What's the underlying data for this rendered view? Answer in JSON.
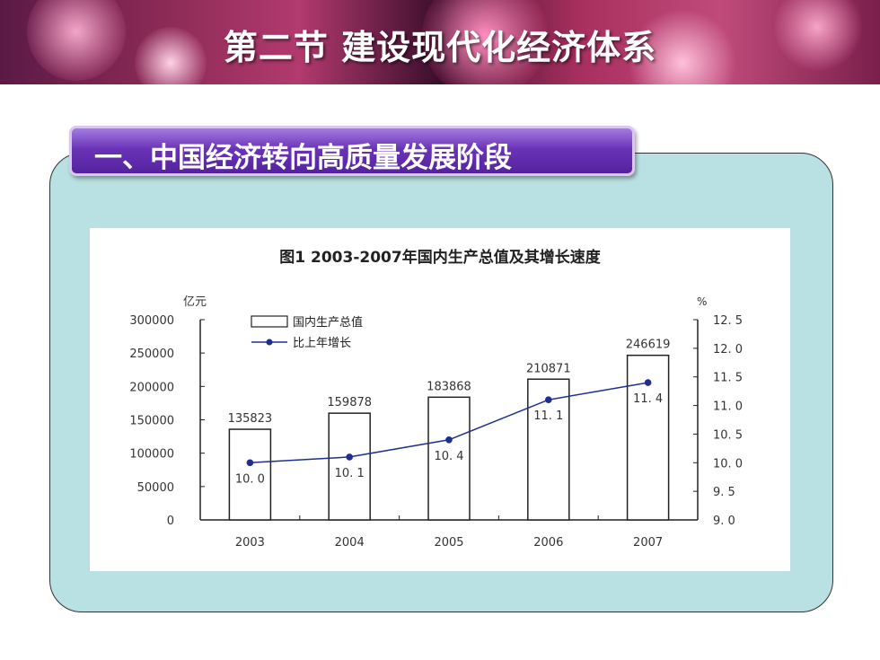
{
  "slide": {
    "title": "第二节  建设现代化经济体系",
    "section_title": "一、中国经济转向高质量发展阶段"
  },
  "colors": {
    "panel_bg": "#b9e0e2",
    "tab_purple": "#6b34b8",
    "line_color": "#1f2f8f"
  },
  "chart_data": {
    "type": "bar",
    "title": "图1   2003-2007年国内生产总值及其增长速度",
    "categories": [
      "2003",
      "2004",
      "2005",
      "2006",
      "2007"
    ],
    "left_axis": {
      "unit": "亿元",
      "ylim": [
        0,
        300000
      ],
      "ticks": [
        "300000",
        "250000",
        "200000",
        "150000",
        "100000",
        "50000",
        "0"
      ]
    },
    "right_axis": {
      "unit": "%",
      "ylim": [
        9.0,
        12.5
      ],
      "ticks": [
        "12. 5",
        "12. 0",
        "11. 5",
        "11. 0",
        "10. 5",
        "10. 0",
        "9. 5",
        "9. 0"
      ]
    },
    "series": [
      {
        "name": "国内生产总值",
        "kind": "bar",
        "axis": "left",
        "values": [
          135823,
          159878,
          183868,
          210871,
          246619
        ],
        "labels": [
          "135823",
          "159878",
          "183868",
          "210871",
          "246619"
        ]
      },
      {
        "name": "比上年增长",
        "kind": "line",
        "axis": "right",
        "values": [
          10.0,
          10.1,
          10.4,
          11.1,
          11.4
        ],
        "labels": [
          "10. 0",
          "10. 1",
          "10. 4",
          "11. 1",
          "11. 4"
        ]
      }
    ],
    "legend": "top-left",
    "grid": false
  }
}
